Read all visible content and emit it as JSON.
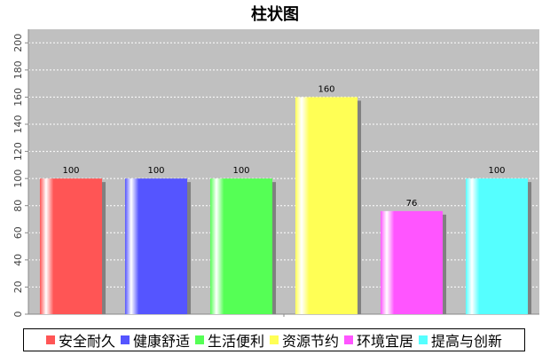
{
  "chart_data": {
    "type": "bar",
    "title": "柱状图",
    "categories": [
      "安全耐久",
      "健康舒适",
      "生活便利",
      "资源节约",
      "环境宜居",
      "提高与创新"
    ],
    "values": [
      100,
      100,
      100,
      160,
      76,
      100
    ],
    "colors": [
      "#ff5555",
      "#5555ff",
      "#55ff55",
      "#ffff55",
      "#ff55ff",
      "#55ffff"
    ],
    "ylim": [
      0,
      210
    ],
    "yticks": [
      0,
      20,
      40,
      60,
      80,
      100,
      120,
      140,
      160,
      180,
      200
    ],
    "xlabel": "",
    "ylabel": "",
    "grid": true,
    "legend_position": "bottom",
    "plot_background": "#c0c0c0"
  }
}
